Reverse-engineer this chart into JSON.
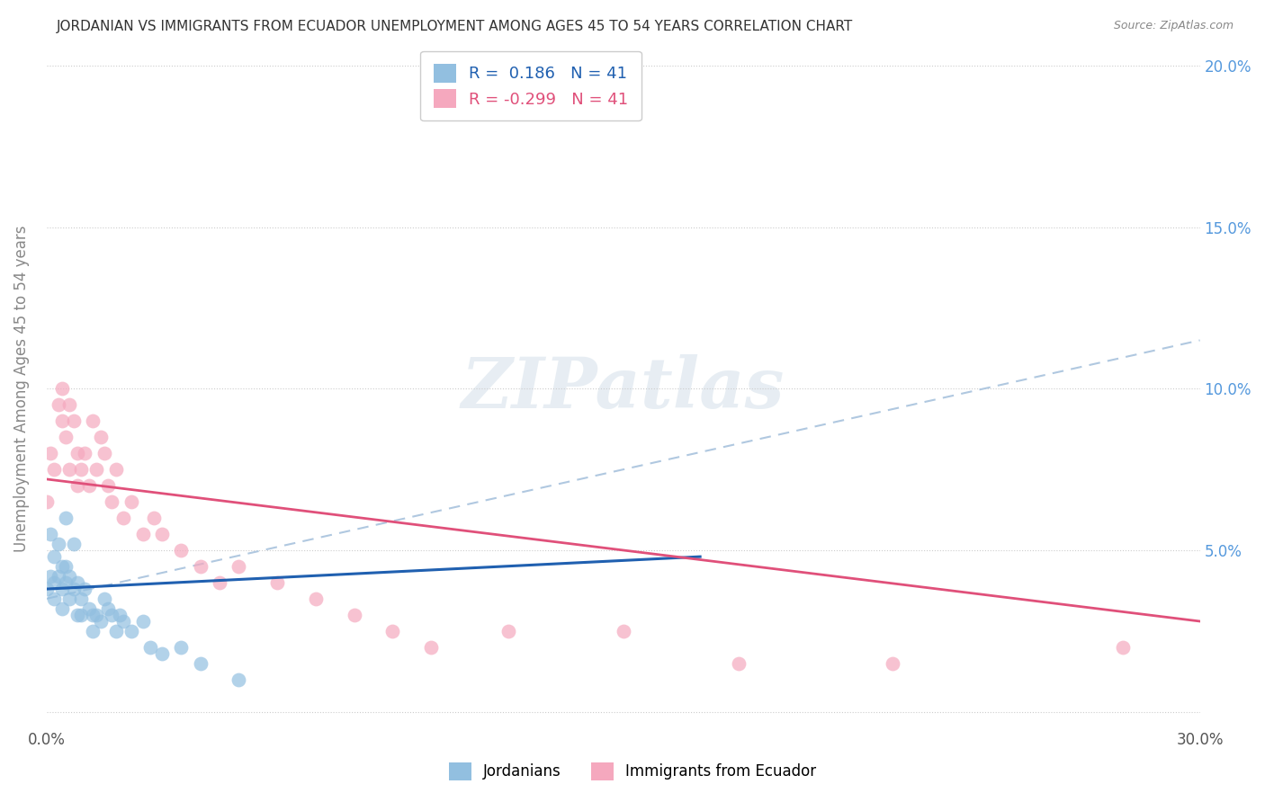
{
  "title": "JORDANIAN VS IMMIGRANTS FROM ECUADOR UNEMPLOYMENT AMONG AGES 45 TO 54 YEARS CORRELATION CHART",
  "source": "Source: ZipAtlas.com",
  "ylabel": "Unemployment Among Ages 45 to 54 years",
  "legend_jordanians": "Jordanians",
  "legend_ecuador": "Immigrants from Ecuador",
  "r_jordanians": "0.186",
  "n_jordanians": "41",
  "r_ecuador": "-0.299",
  "n_ecuador": "41",
  "xlim": [
    0.0,
    0.3
  ],
  "ylim": [
    -0.005,
    0.205
  ],
  "xtick_positions": [
    0.0,
    0.05,
    0.1,
    0.15,
    0.2,
    0.25,
    0.3
  ],
  "xtick_labels": [
    "0.0%",
    "",
    "",
    "",
    "",
    "",
    "30.0%"
  ],
  "ytick_positions": [
    0.0,
    0.05,
    0.1,
    0.15,
    0.2
  ],
  "ytick_labels_right": [
    "",
    "5.0%",
    "10.0%",
    "15.0%",
    "20.0%"
  ],
  "color_jordanians": "#92bfe0",
  "color_ecuador": "#f5a8be",
  "line_color_jordanians": "#2060b0",
  "line_color_ecuador": "#e0507a",
  "trend_line_color": "#b0c8e0",
  "background_color": "#ffffff",
  "watermark_text": "ZIPatlas",
  "jordanians_x": [
    0.0,
    0.001,
    0.001,
    0.002,
    0.002,
    0.002,
    0.003,
    0.003,
    0.004,
    0.004,
    0.004,
    0.005,
    0.005,
    0.005,
    0.006,
    0.006,
    0.007,
    0.007,
    0.008,
    0.008,
    0.009,
    0.009,
    0.01,
    0.011,
    0.012,
    0.012,
    0.013,
    0.014,
    0.015,
    0.016,
    0.017,
    0.018,
    0.019,
    0.02,
    0.022,
    0.025,
    0.027,
    0.03,
    0.035,
    0.04,
    0.05
  ],
  "jordanians_y": [
    0.038,
    0.042,
    0.055,
    0.048,
    0.04,
    0.035,
    0.042,
    0.052,
    0.045,
    0.038,
    0.032,
    0.06,
    0.045,
    0.04,
    0.042,
    0.035,
    0.052,
    0.038,
    0.04,
    0.03,
    0.035,
    0.03,
    0.038,
    0.032,
    0.03,
    0.025,
    0.03,
    0.028,
    0.035,
    0.032,
    0.03,
    0.025,
    0.03,
    0.028,
    0.025,
    0.028,
    0.02,
    0.018,
    0.02,
    0.015,
    0.01
  ],
  "ecuador_x": [
    0.0,
    0.001,
    0.002,
    0.003,
    0.004,
    0.004,
    0.005,
    0.006,
    0.006,
    0.007,
    0.008,
    0.008,
    0.009,
    0.01,
    0.011,
    0.012,
    0.013,
    0.014,
    0.015,
    0.016,
    0.017,
    0.018,
    0.02,
    0.022,
    0.025,
    0.028,
    0.03,
    0.035,
    0.04,
    0.045,
    0.05,
    0.06,
    0.07,
    0.08,
    0.09,
    0.1,
    0.12,
    0.15,
    0.18,
    0.22,
    0.28
  ],
  "ecuador_y": [
    0.065,
    0.08,
    0.075,
    0.095,
    0.09,
    0.1,
    0.085,
    0.095,
    0.075,
    0.09,
    0.08,
    0.07,
    0.075,
    0.08,
    0.07,
    0.09,
    0.075,
    0.085,
    0.08,
    0.07,
    0.065,
    0.075,
    0.06,
    0.065,
    0.055,
    0.06,
    0.055,
    0.05,
    0.045,
    0.04,
    0.045,
    0.04,
    0.035,
    0.03,
    0.025,
    0.02,
    0.025,
    0.025,
    0.015,
    0.015,
    0.02
  ],
  "blue_line_x0": 0.0,
  "blue_line_y0": 0.038,
  "blue_line_x1": 0.17,
  "blue_line_y1": 0.048,
  "pink_line_x0": 0.0,
  "pink_line_y0": 0.072,
  "pink_line_x1": 0.3,
  "pink_line_y1": 0.028,
  "dash_line_x0": 0.0,
  "dash_line_y0": 0.035,
  "dash_line_x1": 0.3,
  "dash_line_y1": 0.115
}
